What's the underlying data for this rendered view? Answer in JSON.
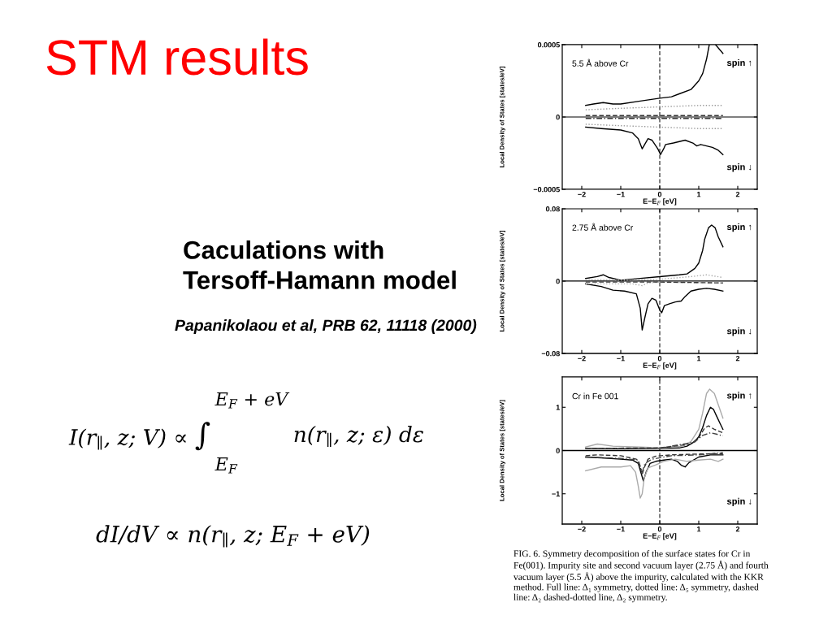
{
  "chart_data": [
    {
      "type": "other",
      "title": "STM results",
      "annotations": [
        "Caculations with\nTersoff-Hamann model",
        "Papanikolaou et al, PRB 62, 11118 (2000)",
        "I(r$_{∥}$, z; V) ∝ ∫",
        "E$_{F}$ + eV",
        "E$_{F}$",
        "n(r$_{∥}$, z; ε) dε",
        "dI/dV ∝ n(r$_{∥}$, z; E$_{F}$ + eV)"
      ]
    },
    {
      "type": "line",
      "xlabel": "E−E$_{F}$ [eV]",
      "ylabel": "Local Density of States [states/eV]",
      "xlim": [
        -2.5,
        2.5
      ],
      "ylim": [
        -0.0005,
        0.0005
      ],
      "xticks": [
        -2,
        -1,
        0,
        1,
        2
      ],
      "yticks": [
        -0.0005,
        0,
        0.0005
      ],
      "annotations": [
        "5.5 Å above Cr",
        "spin ↑",
        "spin ↓"
      ],
      "ref_lines": [
        {
          "axis": "x",
          "value": 0,
          "color": "#333333",
          "line_style": "dashed"
        },
        {
          "axis": "y",
          "value": 0,
          "color": "#000000",
          "line_style": "solid"
        }
      ],
      "series": [
        {
          "color": "#000000",
          "line_style": "solid",
          "x": [
            -1.9,
            -1.7,
            -1.45,
            -1.2,
            -1.0,
            -0.5,
            0,
            0.3,
            0.5,
            0.8,
            1.0,
            1.1,
            1.2,
            1.27,
            1.35,
            1.43,
            1.62
          ],
          "values": [
            8e-05,
            9e-05,
            0.0001,
            9e-05,
            9e-05,
            0.00011,
            0.00013,
            0.00014,
            0.00016,
            0.00019,
            0.00025,
            0.0003,
            0.0004,
            0.0005,
            null,
            0.0005,
            0.00044
          ]
        },
        {
          "color": "#000000",
          "line_style": "solid",
          "x": [
            -1.9,
            -1.5,
            -1.0,
            -0.7,
            -0.55,
            -0.45,
            -0.3,
            -0.2,
            -0.05,
            0.02,
            0.1,
            0.15,
            0.35,
            0.5,
            0.65,
            0.85,
            0.95,
            1.05,
            1.2,
            1.35,
            1.5,
            1.62
          ],
          "values": [
            -7e-05,
            -8e-05,
            -9e-05,
            -0.00011,
            -0.00015,
            -0.00022,
            -0.00015,
            -0.00016,
            -0.00022,
            -0.00026,
            -0.00022,
            -0.00019,
            -0.00018,
            -0.00017,
            -0.00016,
            -0.00018,
            -0.0002,
            -0.00019,
            -0.0002,
            -0.00021,
            -0.00023,
            -0.00026
          ]
        },
        {
          "color": "#999999",
          "line_style": "dotted",
          "x": [
            -1.9,
            -1.0,
            0,
            1.0,
            1.62
          ],
          "values": [
            5e-05,
            6e-05,
            7e-05,
            8e-05,
            8e-05
          ]
        },
        {
          "color": "#999999",
          "line_style": "dotted",
          "x": [
            -1.9,
            -1.0,
            0,
            1.0,
            1.62
          ],
          "values": [
            -5e-05,
            -6e-05,
            -7e-05,
            -8e-05,
            -8e-05
          ]
        },
        {
          "color": "#333333",
          "line_style": "dashed",
          "x": [
            -1.9,
            0,
            1.62
          ],
          "values": [
            1e-05,
            1e-05,
            1e-05
          ]
        },
        {
          "color": "#333333",
          "line_style": "dashdot",
          "x": [
            -1.9,
            0,
            1.62
          ],
          "values": [
            -1e-05,
            -1e-05,
            -1e-05
          ]
        }
      ]
    },
    {
      "type": "line",
      "xlabel": "E−E$_{F}$ [eV]",
      "ylabel": "Local Density of States [states/eV]",
      "xlim": [
        -2.5,
        2.5
      ],
      "ylim": [
        -0.08,
        0.08
      ],
      "xticks": [
        -2,
        -1,
        0,
        1,
        2
      ],
      "yticks": [
        -0.08,
        0,
        0.08
      ],
      "annotations": [
        "2.75 Å above Cr",
        "spin ↑",
        "spin ↓"
      ],
      "ref_lines": [
        {
          "axis": "x",
          "value": 0,
          "color": "#333333",
          "line_style": "dashed"
        },
        {
          "axis": "y",
          "value": 0,
          "color": "#000000",
          "line_style": "solid"
        }
      ],
      "series": [
        {
          "color": "#000000",
          "line_style": "solid",
          "x": [
            -1.9,
            -1.6,
            -1.45,
            -1.3,
            -1.0,
            -0.5,
            0,
            0.5,
            0.7,
            0.9,
            1.0,
            1.1,
            1.15,
            1.25,
            1.33,
            1.42,
            1.5,
            1.62
          ],
          "values": [
            0.003,
            0.005,
            0.007,
            0.004,
            0.001,
            0.003,
            0.005,
            0.007,
            0.008,
            0.014,
            0.02,
            0.034,
            0.046,
            0.059,
            0.062,
            0.059,
            0.049,
            0.038
          ]
        },
        {
          "color": "#000000",
          "line_style": "solid",
          "x": [
            -1.9,
            -1.5,
            -1.2,
            -0.9,
            -0.6,
            -0.5,
            -0.45,
            -0.38,
            -0.3,
            -0.2,
            -0.1,
            0,
            0.05,
            0.12,
            0.25,
            0.4,
            0.55,
            0.65,
            0.8,
            1.0,
            1.2,
            1.4,
            1.62
          ],
          "values": [
            -0.003,
            -0.006,
            -0.01,
            -0.011,
            -0.014,
            -0.03,
            -0.054,
            -0.04,
            -0.025,
            -0.019,
            -0.021,
            -0.032,
            -0.035,
            -0.027,
            -0.025,
            -0.023,
            -0.022,
            -0.017,
            -0.011,
            -0.009,
            -0.008,
            -0.009,
            -0.011
          ]
        },
        {
          "color": "#aaaaaa",
          "line_style": "dotted",
          "x": [
            -1.9,
            -1.0,
            0,
            0.8,
            1.2,
            1.62
          ],
          "values": [
            0.002,
            0.001,
            0.002,
            0.005,
            0.007,
            0.004
          ]
        },
        {
          "color": "#aaaaaa",
          "line_style": "dotted",
          "x": [
            -1.9,
            -0.7,
            -0.45,
            -0.3,
            0,
            1.62
          ],
          "values": [
            -0.003,
            -0.003,
            -0.005,
            -0.002,
            -0.001,
            -0.002
          ]
        },
        {
          "color": "#333333",
          "line_style": "dashed",
          "x": [
            -1.9,
            0,
            1.62
          ],
          "values": [
            -0.001,
            -0.001,
            -0.002
          ]
        }
      ]
    },
    {
      "type": "line",
      "xlabel": "E−E$_{F}$ [eV]",
      "ylabel": "Local Density of States [states/eV]",
      "xlim": [
        -2.5,
        2.5
      ],
      "ylim": [
        -1.7,
        1.7
      ],
      "xticks": [
        -2,
        -1,
        0,
        1,
        2
      ],
      "yticks": [
        -1,
        0,
        1
      ],
      "annotations": [
        "Cr in Fe 001",
        "spin ↑",
        "spin ↓",
        "FIG. 6. Symmetry decomposition of the surface states for Cr in\nFe(001). Impurity site and second vacuum layer (2.75 Å) and fourth\nvacuum layer (5.5 Å) above the impurity, calculated with the KKR\nmethod. Full line: Δ₁ symmetry, dotted line: Δ₅ symmetry, dashed\nline: Δ₂ dashed-dotted line, Δ₂ symmetry."
      ],
      "ref_lines": [
        {
          "axis": "x",
          "value": 0,
          "color": "#333333",
          "line_style": "dashed"
        },
        {
          "axis": "y",
          "value": 0,
          "color": "#000000",
          "line_style": "solid"
        }
      ],
      "series": [
        {
          "color": "#000000",
          "line_style": "solid",
          "x": [
            -1.9,
            -1.0,
            0,
            0.5,
            0.7,
            0.9,
            1.0,
            1.1,
            1.2,
            1.3,
            1.38,
            1.45,
            1.55,
            1.62
          ],
          "values": [
            0.05,
            0.04,
            0.05,
            0.06,
            0.1,
            0.21,
            0.32,
            0.53,
            0.81,
            1.0,
            0.95,
            0.81,
            0.62,
            0.49
          ]
        },
        {
          "color": "#aaaaaa",
          "line_style": "solid",
          "x": [
            -1.9,
            -1.6,
            -1.2,
            -0.5,
            0,
            0.6,
            0.8,
            1.0,
            1.1,
            1.2,
            1.28,
            1.4,
            1.5,
            1.62
          ],
          "values": [
            0.08,
            0.15,
            0.1,
            0.08,
            0.06,
            0.1,
            0.21,
            0.49,
            0.87,
            1.32,
            1.42,
            1.32,
            1.06,
            0.75
          ]
        },
        {
          "color": "#333333",
          "line_style": "dashed",
          "x": [
            -1.9,
            0,
            0.8,
            1.0,
            1.15,
            1.25,
            1.4,
            1.62
          ],
          "values": [
            0.05,
            0.06,
            0.15,
            0.3,
            0.52,
            0.57,
            0.49,
            0.41
          ]
        },
        {
          "color": "#444444",
          "line_style": "dashdot",
          "x": [
            -1.9,
            0,
            0.9,
            1.1,
            1.3,
            1.45,
            1.62
          ],
          "values": [
            0.05,
            0.05,
            0.2,
            0.35,
            0.41,
            0.38,
            0.34
          ]
        },
        {
          "color": "#000000",
          "line_style": "solid",
          "x": [
            -1.9,
            -1.5,
            -1.0,
            -0.7,
            -0.55,
            -0.45,
            -0.42,
            -0.35,
            -0.25,
            -0.1,
            0.1,
            0.3,
            0.45,
            0.55,
            0.65,
            0.75,
            1.0,
            1.3,
            1.62
          ],
          "values": [
            -0.15,
            -0.17,
            -0.2,
            -0.22,
            -0.3,
            -0.61,
            -0.7,
            -0.5,
            -0.3,
            -0.25,
            -0.22,
            -0.2,
            -0.25,
            -0.34,
            -0.38,
            -0.28,
            -0.15,
            -0.1,
            -0.1
          ]
        },
        {
          "color": "#aaaaaa",
          "line_style": "solid",
          "x": [
            -1.9,
            -1.5,
            -1.0,
            -0.75,
            -0.62,
            -0.55,
            -0.5,
            -0.45,
            -0.4,
            -0.3,
            -0.1,
            0.1,
            0.4,
            0.7,
            1.0,
            1.3,
            1.5,
            1.62
          ],
          "values": [
            -0.47,
            -0.38,
            -0.38,
            -0.35,
            -0.5,
            -0.83,
            -1.1,
            -1.0,
            -0.65,
            -0.4,
            -0.33,
            -0.25,
            -0.2,
            -0.25,
            -0.22,
            -0.2,
            -0.25,
            -0.2
          ]
        },
        {
          "color": "#333333",
          "line_style": "dashed",
          "x": [
            -1.9,
            -1.6,
            -1.0,
            -0.6,
            -0.5,
            -0.45,
            -0.4,
            -0.3,
            -0.1,
            0.3,
            1.0,
            1.62
          ],
          "values": [
            -0.12,
            -0.1,
            -0.12,
            -0.2,
            -0.39,
            -0.55,
            -0.4,
            -0.2,
            -0.13,
            -0.1,
            -0.08,
            -0.07
          ]
        },
        {
          "color": "#444444",
          "line_style": "dashdot",
          "x": [
            -1.9,
            -1.0,
            -0.55,
            -0.45,
            -0.38,
            -0.2,
            0.3,
            1.0,
            1.62
          ],
          "values": [
            -0.15,
            -0.18,
            -0.22,
            -0.5,
            -0.3,
            -0.2,
            -0.12,
            -0.1,
            -0.05
          ]
        }
      ]
    }
  ]
}
